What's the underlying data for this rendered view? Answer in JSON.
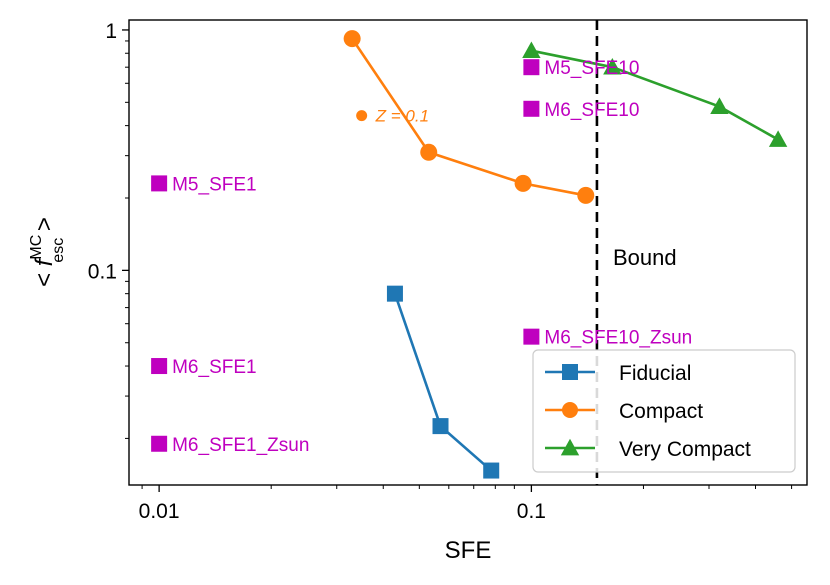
{
  "chart_data": {
    "type": "line",
    "xscale": "log",
    "yscale": "log",
    "xlim": [
      0.0083,
      0.55
    ],
    "ylim": [
      0.0128,
      1.1
    ],
    "xlabel": "SFE",
    "ylabel": {
      "prefix": "< ",
      "var": "f",
      "sup": "MC",
      "sub": "esc",
      "suffix": " >"
    },
    "x_ticks": [
      {
        "value": 0.01,
        "label": "0.01"
      },
      {
        "value": 0.1,
        "label": "0.1"
      }
    ],
    "y_ticks": [
      {
        "value": 0.1,
        "label": "0.1"
      },
      {
        "value": 1,
        "label": "1"
      }
    ],
    "series": [
      {
        "name": "Fiducial",
        "color": "#1f77b4",
        "marker": "square",
        "x": [
          0.043,
          0.057,
          0.078
        ],
        "y": [
          0.08,
          0.0225,
          0.0147
        ]
      },
      {
        "name": "Compact",
        "color": "#ff7f0e",
        "marker": "circle",
        "x": [
          0.033,
          0.053,
          0.095,
          0.14
        ],
        "y": [
          0.92,
          0.31,
          0.23,
          0.205
        ]
      },
      {
        "name": "Very Compact",
        "color": "#2ca02c",
        "marker": "triangle",
        "x": [
          0.1,
          0.165,
          0.32,
          0.46
        ],
        "y": [
          0.82,
          0.7,
          0.48,
          0.35
        ]
      }
    ],
    "annotations": [
      {
        "label": "M5_SFE1",
        "x": 0.01,
        "y": 0.23
      },
      {
        "label": "M6_SFE1",
        "x": 0.01,
        "y": 0.04
      },
      {
        "label": "M6_SFE1_Zsun",
        "x": 0.01,
        "y": 0.019
      },
      {
        "label": "M5_SFE10",
        "x": 0.1,
        "y": 0.7
      },
      {
        "label": "M6_SFE10",
        "x": 0.1,
        "y": 0.47
      },
      {
        "label": "M6_SFE10_Zsun",
        "x": 0.1,
        "y": 0.053
      }
    ],
    "annotation_color": "#bf00bf",
    "z_note": {
      "label": "Z = 0.1",
      "x": 0.035,
      "y": 0.44,
      "color": "#ff7f0e"
    },
    "vline": {
      "x": 0.15,
      "label": "Bound",
      "style": "dashed",
      "color": "#000000"
    },
    "legend": {
      "placement": "lower-right",
      "entries": [
        "Fiducial",
        "Compact",
        "Very Compact"
      ]
    }
  }
}
